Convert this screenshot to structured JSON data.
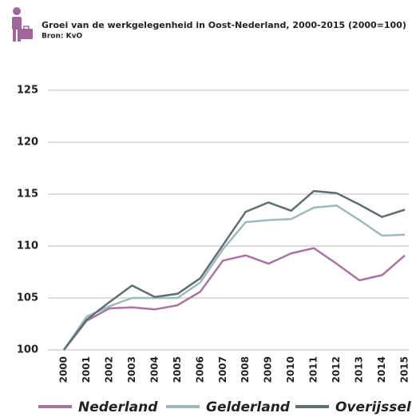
{
  "chart_data": {
    "type": "line",
    "title": "Groei van de werkgelegenheid in Oost-Nederland, 2000-2015 (2000=100)",
    "subtitle": "Bron: KvO",
    "x": [
      "2000",
      "2001",
      "2002",
      "2003",
      "2004",
      "2005",
      "2006",
      "2007",
      "2008",
      "2009",
      "2010",
      "2011",
      "2012",
      "2013",
      "2014",
      "2015"
    ],
    "series": [
      {
        "name": "Nederland",
        "color": "#a8739f",
        "values": [
          100,
          102.8,
          104,
          104.1,
          103.9,
          104.3,
          105.6,
          108.6,
          109.1,
          108.3,
          109.3,
          109.8,
          108.3,
          106.7,
          107.2,
          109.1
        ]
      },
      {
        "name": "Gelderland",
        "color": "#9fb8bb",
        "values": [
          100,
          103.2,
          104.2,
          105.0,
          105.0,
          105.0,
          106.5,
          109.7,
          112.3,
          112.5,
          112.6,
          113.7,
          113.9,
          112.5,
          111.0,
          111.1
        ]
      },
      {
        "name": "Overijssel",
        "color": "#5f6e73",
        "values": [
          100,
          102.9,
          104.6,
          106.2,
          105.1,
          105.4,
          106.9,
          110.1,
          113.3,
          114.2,
          113.4,
          115.3,
          115.1,
          114.0,
          112.8,
          113.5
        ]
      }
    ],
    "ylim": [
      100,
      125
    ],
    "yticks": [
      100,
      105,
      110,
      115,
      120,
      125
    ],
    "grid": true
  }
}
